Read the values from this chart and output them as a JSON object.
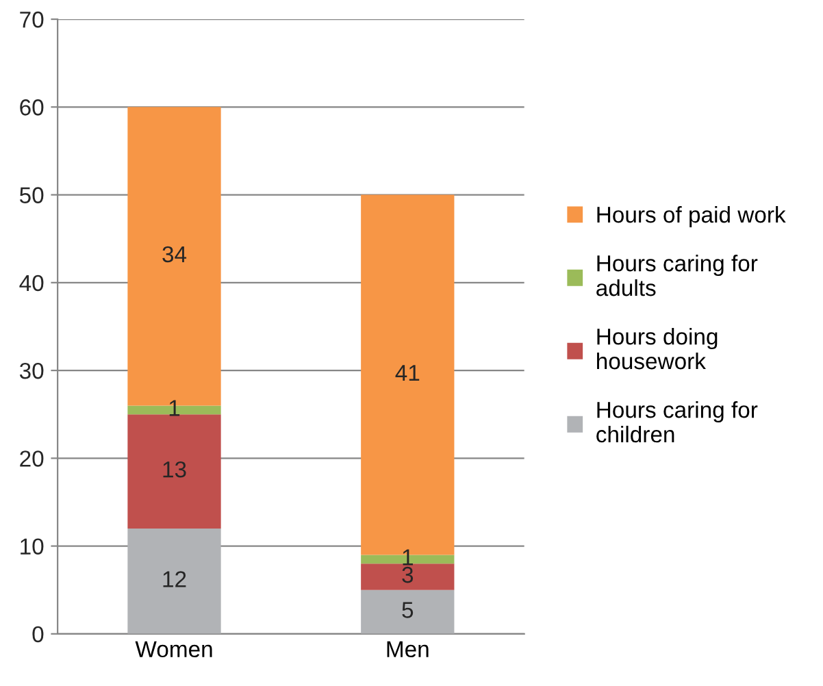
{
  "chart_data": {
    "type": "bar",
    "stacked": true,
    "categories": [
      "Women",
      "Men"
    ],
    "series": [
      {
        "name": "Hours caring for\nchildren",
        "color": "#b1b3b6",
        "values": [
          12,
          5
        ]
      },
      {
        "name": "Hours doing\nhousework",
        "color": "#c0504d",
        "values": [
          13,
          3
        ]
      },
      {
        "name": "Hours caring for\nadults",
        "color": "#9bbb59",
        "values": [
          1,
          1
        ]
      },
      {
        "name": "Hours of paid work",
        "color": "#f79646",
        "values": [
          34,
          41
        ]
      }
    ],
    "ylim": [
      0,
      70
    ],
    "yticks": [
      0,
      10,
      20,
      30,
      40,
      50,
      60,
      70
    ],
    "grid": "y",
    "legend": "right",
    "data_labels": true
  }
}
